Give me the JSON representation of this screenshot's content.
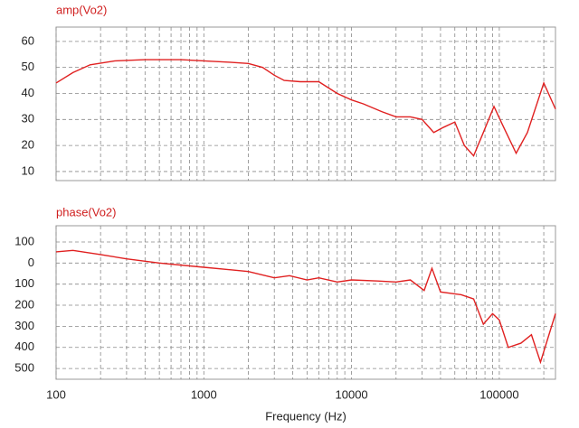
{
  "chart_data": [
    {
      "type": "line",
      "title": "amp(Vo2)",
      "color": "#e02020",
      "log_x": true,
      "grid": true,
      "show_xtick_labels": false,
      "x": [
        100,
        130,
        170,
        250,
        400,
        700,
        1000,
        1500,
        2000,
        2500,
        3000,
        3500,
        4500,
        6000,
        8000,
        10000,
        12000,
        16000,
        20000,
        25000,
        30000,
        36000,
        42000,
        50000,
        58000,
        67000,
        78000,
        92000,
        105000,
        130000,
        155000,
        200000,
        240000
      ],
      "values": [
        44,
        48,
        51,
        52.5,
        53,
        53,
        52.5,
        52,
        51.5,
        50,
        47,
        45,
        44.5,
        44.5,
        40,
        37.5,
        36,
        33,
        31,
        31,
        30,
        25,
        27,
        29,
        20,
        16,
        25,
        35,
        28,
        17,
        25,
        44,
        34
      ],
      "xlim": [
        100,
        240000
      ],
      "xticks": [
        100,
        1000,
        10000,
        100000
      ],
      "xminor_ticks": [
        200,
        300,
        400,
        500,
        600,
        700,
        800,
        900,
        2000,
        3000,
        4000,
        5000,
        6000,
        7000,
        8000,
        9000,
        20000,
        30000,
        40000,
        50000,
        60000,
        70000,
        80000,
        90000,
        200000
      ],
      "ylim": [
        6.5,
        65.5
      ],
      "yticks": [
        10,
        20,
        30,
        40,
        50,
        60
      ]
    },
    {
      "type": "line",
      "title": "phase(Vo2)",
      "color": "#e02020",
      "log_x": true,
      "grid": true,
      "show_xtick_labels": true,
      "x_label": "Frequency (Hz)",
      "x": [
        100,
        130,
        200,
        300,
        500,
        1000,
        2000,
        3000,
        3800,
        5000,
        6000,
        8000,
        10000,
        15000,
        20000,
        25000,
        31000,
        35000,
        40000,
        55000,
        67000,
        78000,
        90000,
        100000,
        115000,
        140000,
        165000,
        190000,
        240000
      ],
      "values": [
        53,
        60,
        40,
        20,
        0,
        -20,
        -40,
        -70,
        -60,
        -80,
        -70,
        -90,
        -80,
        -85,
        -90,
        -80,
        -130,
        -25,
        -137,
        -150,
        -170,
        -290,
        -240,
        -270,
        -400,
        -380,
        -340,
        -470,
        -240
      ],
      "xlim": [
        100,
        240000
      ],
      "xticks": [
        100,
        1000,
        10000,
        100000
      ],
      "xminor_ticks": [
        200,
        300,
        400,
        500,
        600,
        700,
        800,
        900,
        2000,
        3000,
        4000,
        5000,
        6000,
        7000,
        8000,
        9000,
        20000,
        30000,
        40000,
        50000,
        60000,
        70000,
        80000,
        90000,
        200000
      ],
      "ylim": [
        -551,
        177
      ],
      "yticks": [
        100,
        0,
        {
          "value": -100,
          "label": "100"
        },
        {
          "value": -200,
          "label": "200"
        },
        {
          "value": -300,
          "label": "300"
        },
        {
          "value": -400,
          "label": "400"
        },
        {
          "value": -500,
          "label": "500"
        }
      ]
    }
  ]
}
